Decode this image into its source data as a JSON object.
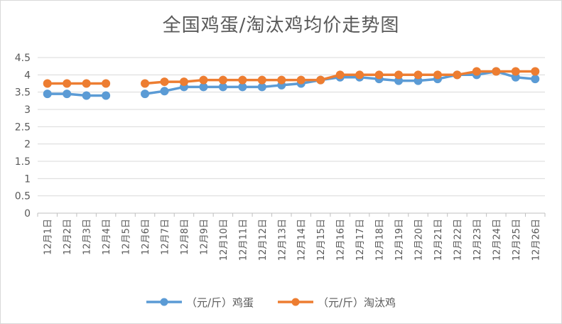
{
  "chart_data": {
    "type": "line",
    "title": "全国鸡蛋/淘汰鸡均价走势图",
    "categories": [
      "12月1日",
      "12月2日",
      "12月3日",
      "12月4日",
      "12月5日",
      "12月6日",
      "12月7日",
      "12月8日",
      "12月9日",
      "12月10日",
      "12月11日",
      "12月12日",
      "12月13日",
      "12月14日",
      "12月15日",
      "12月16日",
      "12月17日",
      "12月18日",
      "12月19日",
      "12月20日",
      "12月21日",
      "12月22日",
      "12月23日",
      "12月24日",
      "12月25日",
      "12月26日"
    ],
    "yticks": [
      "0",
      "0.5",
      "1",
      "1.5",
      "2",
      "2.5",
      "3",
      "3.5",
      "4",
      "4.5"
    ],
    "ylim": [
      0,
      4.5
    ],
    "grid": true,
    "legend_position": "bottom",
    "series": [
      {
        "name": "（元/斤）鸡蛋",
        "color": "#5b9bd5",
        "values": [
          3.45,
          3.45,
          3.4,
          3.4,
          null,
          3.45,
          3.53,
          3.65,
          3.65,
          3.65,
          3.65,
          3.65,
          3.7,
          3.75,
          3.85,
          3.93,
          3.93,
          3.88,
          3.83,
          3.83,
          3.88,
          4.0,
          4.0,
          4.1,
          3.93,
          3.88
        ]
      },
      {
        "name": "（元/斤）淘汰鸡",
        "color": "#ed7d31",
        "values": [
          3.75,
          3.75,
          3.75,
          3.75,
          null,
          3.75,
          3.8,
          3.8,
          3.85,
          3.85,
          3.85,
          3.85,
          3.85,
          3.85,
          3.85,
          4.0,
          4.0,
          4.0,
          4.0,
          4.0,
          4.0,
          4.0,
          4.1,
          4.1,
          4.1,
          4.1
        ]
      }
    ]
  }
}
